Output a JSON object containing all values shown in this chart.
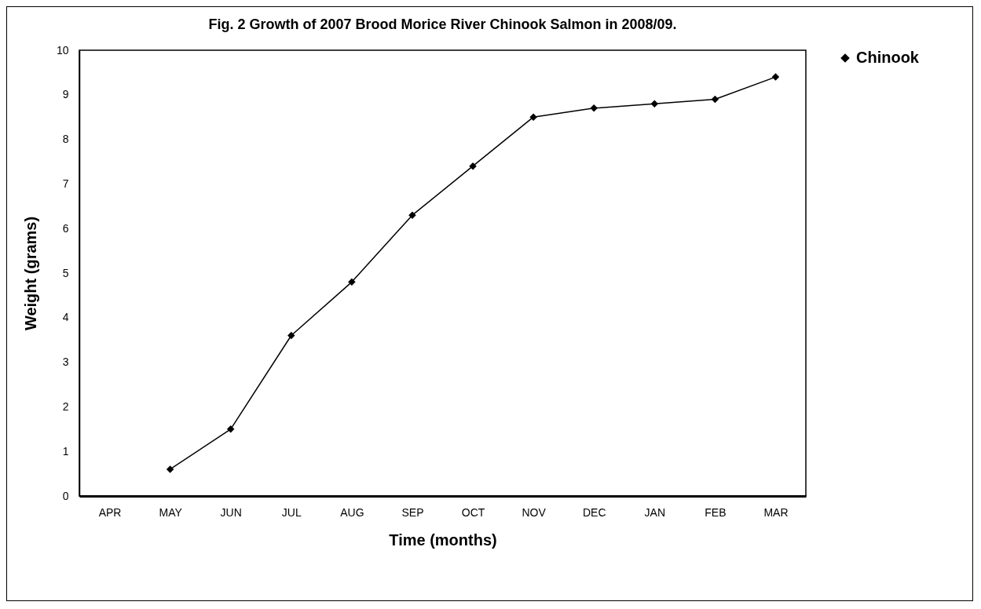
{
  "chart_data": {
    "type": "line",
    "title": "Fig. 2   Growth of 2007 Brood Morice River Chinook Salmon in 2008/09.",
    "xlabel": "Time (months)",
    "ylabel": "Weight (grams)",
    "categories": [
      "APR",
      "MAY",
      "JUN",
      "JUL",
      "AUG",
      "SEP",
      "OCT",
      "NOV",
      "DEC",
      "JAN",
      "FEB",
      "MAR"
    ],
    "series": [
      {
        "name": "Chinook",
        "color": "#000000",
        "values": [
          null,
          0.6,
          1.5,
          3.6,
          4.8,
          6.3,
          7.4,
          8.5,
          8.7,
          8.8,
          8.9,
          9.4
        ]
      }
    ],
    "ylim": [
      0,
      10
    ],
    "yticks": [
      0,
      1,
      2,
      3,
      4,
      5,
      6,
      7,
      8,
      9,
      10
    ],
    "grid": false,
    "legend": "right",
    "marker": "diamond",
    "line_style": "solid"
  }
}
